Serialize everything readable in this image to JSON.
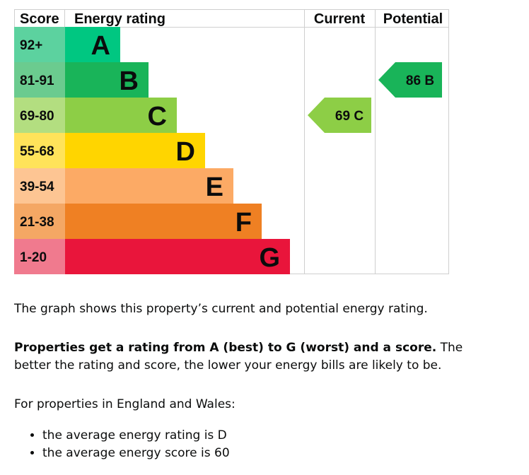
{
  "chart_data": {
    "type": "bar",
    "headers": {
      "score": "Score",
      "rating": "Energy rating",
      "current": "Current",
      "potential": "Potential"
    },
    "bands": [
      {
        "letter": "A",
        "range": "92+",
        "color": "#00c781",
        "score_color": "#5cd29f"
      },
      {
        "letter": "B",
        "range": "81-91",
        "color": "#19b459",
        "score_color": "#6bcb8f"
      },
      {
        "letter": "C",
        "range": "69-80",
        "color": "#8dce46",
        "score_color": "#b3de80"
      },
      {
        "letter": "D",
        "range": "55-68",
        "color": "#ffd500",
        "score_color": "#ffe35a"
      },
      {
        "letter": "E",
        "range": "39-54",
        "color": "#fcaa65",
        "score_color": "#fdc593"
      },
      {
        "letter": "F",
        "range": "21-38",
        "color": "#ef8023",
        "score_color": "#f4a764"
      },
      {
        "letter": "G",
        "range": "1-20",
        "color": "#e9153b",
        "score_color": "#f07a8e"
      }
    ],
    "current": {
      "score": 69,
      "band": "C",
      "label": "69 C",
      "color": "#8dce46"
    },
    "potential": {
      "score": 86,
      "band": "B",
      "label": "86 B",
      "color": "#19b459"
    }
  },
  "text": {
    "intro": "The graph shows this property’s current and potential energy rating.",
    "bold_lead": "Properties get a rating from A (best) to G (worst) and a score.",
    "rest": " The better the rating and score, the lower your energy bills are likely to be.",
    "region": "For properties in England and Wales:",
    "bullets": [
      "the average energy rating is D",
      "the average energy score is 60"
    ]
  }
}
